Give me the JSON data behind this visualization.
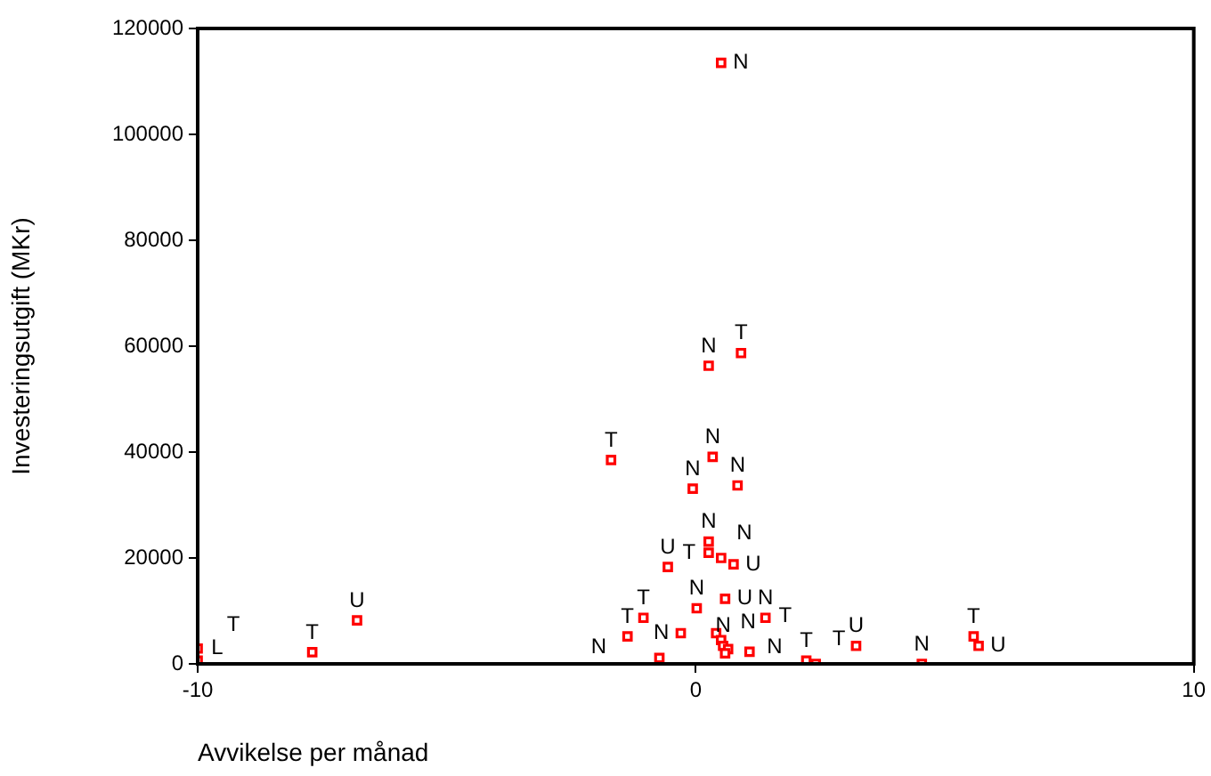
{
  "chart_data": {
    "type": "scatter",
    "xlabel": "Avvikelse per månad",
    "ylabel": "Investeringsutgift (MKr)",
    "xlim": [
      -10,
      10
    ],
    "xticks": [
      -10,
      0,
      10
    ],
    "ylim": [
      0,
      120000
    ],
    "yticks": [
      0,
      20000,
      40000,
      60000,
      80000,
      100000,
      120000
    ],
    "grid": false,
    "legend": false,
    "marker": "square",
    "series": [
      {
        "color": "#ff0000",
        "x": [
          0.51,
          0.26,
          0.91,
          -1.7,
          0.34,
          -0.06,
          0.84,
          0.26,
          0.26,
          0.51,
          0.76,
          -0.56,
          0.59,
          0.02,
          1.4,
          -1.05,
          -1.37,
          -0.3,
          0.41,
          0.51,
          0.55,
          0.65,
          0.59,
          1.08,
          -0.73,
          2.22,
          2.41,
          3.22,
          4.54,
          5.58,
          5.68,
          -7.7,
          -6.8,
          -10,
          -10
        ],
        "values": [
          113500,
          56300,
          58700,
          38500,
          39100,
          33100,
          33700,
          23100,
          21000,
          20000,
          18800,
          18300,
          12300,
          10500,
          8700,
          8700,
          5200,
          5800,
          5800,
          4500,
          3400,
          2800,
          2000,
          2300,
          1100,
          600,
          0,
          3400,
          0,
          5200,
          3400,
          2200,
          8200,
          2900,
          600
        ]
      }
    ],
    "annotations": [
      {
        "text": "N",
        "x": 0.51,
        "y": 113500
      },
      {
        "text": "N",
        "x": 0.26,
        "y": 56300
      },
      {
        "text": "T",
        "x": 0.91,
        "y": 58700
      },
      {
        "text": "T",
        "x": -1.7,
        "y": 38500
      },
      {
        "text": "N",
        "x": 0.34,
        "y": 39100
      },
      {
        "text": "N",
        "x": -0.06,
        "y": 33100
      },
      {
        "text": "N",
        "x": 0.84,
        "y": 33700
      },
      {
        "text": "N",
        "x": 0.26,
        "y": 23100
      },
      {
        "text": "T",
        "x": 0.26,
        "y": 21000
      },
      {
        "text": "N",
        "x": 0.51,
        "y": 20000
      },
      {
        "text": "U",
        "x": 0.76,
        "y": 18800
      },
      {
        "text": "U",
        "x": -0.56,
        "y": 18300
      },
      {
        "text": "U",
        "x": 0.59,
        "y": 12300
      },
      {
        "text": "N",
        "x": 0.02,
        "y": 10500
      },
      {
        "text": "N",
        "x": 1.4,
        "y": 8700
      },
      {
        "text": "T",
        "x": -1.05,
        "y": 8700
      },
      {
        "text": "T",
        "x": -1.37,
        "y": 5200
      },
      {
        "text": "N",
        "x": -0.3,
        "y": 5800
      },
      {
        "text": "N",
        "x": 0.41,
        "y": 5800
      },
      {
        "text": "N",
        "x": 0.51,
        "y": 4500
      },
      {
        "text": "N",
        "x": 0.55,
        "y": 3400
      },
      {
        "text": "T",
        "x": 1.08,
        "y": 2300
      },
      {
        "text": "N",
        "x": -0.73,
        "y": 1100
      },
      {
        "text": "T",
        "x": 2.22,
        "y": 600
      },
      {
        "text": "T",
        "x": 2.41,
        "y": 0
      },
      {
        "text": "U",
        "x": 3.22,
        "y": 3400
      },
      {
        "text": "N",
        "x": 4.54,
        "y": 0
      },
      {
        "text": "T",
        "x": 5.58,
        "y": 5200
      },
      {
        "text": "U",
        "x": 5.68,
        "y": 3400
      },
      {
        "text": "T",
        "x": -7.7,
        "y": 2200
      },
      {
        "text": "U",
        "x": -6.8,
        "y": 8200
      },
      {
        "text": "L",
        "x": -10,
        "y": 2900
      },
      {
        "text": "T",
        "x": -10,
        "y": 600
      }
    ]
  }
}
